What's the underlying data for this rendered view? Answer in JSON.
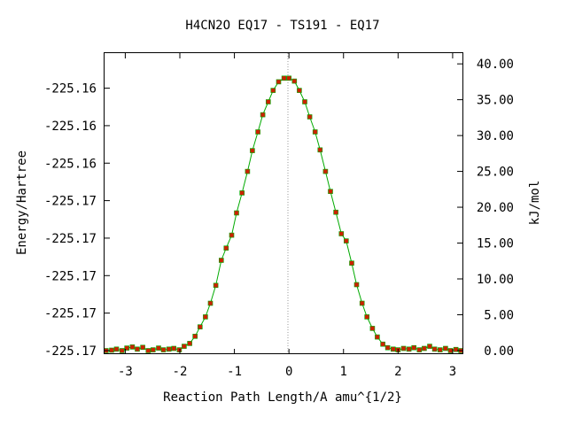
{
  "chart_data": {
    "type": "line",
    "title": "H4CN2O   EQ17 - TS191 - EQ17",
    "xlabel": "Reaction Path Length/A amu^{1/2}",
    "ylabel": "Energy/Hartree",
    "ylabel_right": "kJ/mol",
    "xlim": [
      -3.38,
      3.18
    ],
    "ylim_right": [
      -0.5,
      41.5
    ],
    "x_ticks": [
      {
        "value": -3,
        "label": "-3"
      },
      {
        "value": -2,
        "label": "-2"
      },
      {
        "value": -1,
        "label": "-1"
      },
      {
        "value": 0,
        "label": "0"
      },
      {
        "value": 1,
        "label": "1"
      },
      {
        "value": 2,
        "label": "2"
      },
      {
        "value": 3,
        "label": "3"
      }
    ],
    "y_left_ticks": [
      {
        "kj": 0,
        "label": "-225.17"
      },
      {
        "kj": 5.23,
        "label": "-225.17"
      },
      {
        "kj": 10.46,
        "label": "-225.17"
      },
      {
        "kj": 15.69,
        "label": "-225.17"
      },
      {
        "kj": 20.92,
        "label": "-225.17"
      },
      {
        "kj": 26.15,
        "label": "-225.16"
      },
      {
        "kj": 31.38,
        "label": "-225.16"
      },
      {
        "kj": 36.61,
        "label": "-225.16"
      }
    ],
    "y_right_ticks": [
      {
        "value": 0,
        "label": "0.00"
      },
      {
        "value": 5,
        "label": "5.00"
      },
      {
        "value": 10,
        "label": "10.00"
      },
      {
        "value": 15,
        "label": "15.00"
      },
      {
        "value": 20,
        "label": "20.00"
      },
      {
        "value": 25,
        "label": "25.00"
      },
      {
        "value": 30,
        "label": "30.00"
      },
      {
        "value": 35,
        "label": "35.00"
      },
      {
        "value": 40,
        "label": "40.00"
      }
    ],
    "series": [
      {
        "line_color": "#00aa00",
        "marker_color": "#cc2200",
        "points": [
          [
            -3.35,
            0.0
          ],
          [
            -3.25,
            0.05
          ],
          [
            -3.16,
            0.2
          ],
          [
            -3.06,
            0.0
          ],
          [
            -2.97,
            0.35
          ],
          [
            -2.87,
            0.5
          ],
          [
            -2.78,
            0.2
          ],
          [
            -2.68,
            0.45
          ],
          [
            -2.58,
            0.0
          ],
          [
            -2.49,
            0.1
          ],
          [
            -2.39,
            0.35
          ],
          [
            -2.3,
            0.1
          ],
          [
            -2.2,
            0.2
          ],
          [
            -2.11,
            0.3
          ],
          [
            -2.01,
            0.1
          ],
          [
            -1.92,
            0.6
          ],
          [
            -1.82,
            1.0
          ],
          [
            -1.72,
            2.0
          ],
          [
            -1.63,
            3.3
          ],
          [
            -1.53,
            4.7
          ],
          [
            -1.44,
            6.6
          ],
          [
            -1.34,
            9.1
          ],
          [
            -1.24,
            12.6
          ],
          [
            -1.15,
            14.3
          ],
          [
            -1.05,
            16.1
          ],
          [
            -0.96,
            19.2
          ],
          [
            -0.86,
            22.0
          ],
          [
            -0.76,
            25.0
          ],
          [
            -0.67,
            27.9
          ],
          [
            -0.57,
            30.5
          ],
          [
            -0.48,
            32.9
          ],
          [
            -0.38,
            34.7
          ],
          [
            -0.29,
            36.3
          ],
          [
            -0.19,
            37.5
          ],
          [
            -0.09,
            38.0
          ],
          [
            0.0,
            38.0
          ],
          [
            0.1,
            37.6
          ],
          [
            0.19,
            36.3
          ],
          [
            0.29,
            34.7
          ],
          [
            0.38,
            32.6
          ],
          [
            0.48,
            30.5
          ],
          [
            0.57,
            28.0
          ],
          [
            0.67,
            25.0
          ],
          [
            0.76,
            22.2
          ],
          [
            0.86,
            19.3
          ],
          [
            0.96,
            16.3
          ],
          [
            1.05,
            15.3
          ],
          [
            1.15,
            12.2
          ],
          [
            1.24,
            9.2
          ],
          [
            1.34,
            6.6
          ],
          [
            1.43,
            4.7
          ],
          [
            1.53,
            3.1
          ],
          [
            1.62,
            1.9
          ],
          [
            1.72,
            0.9
          ],
          [
            1.81,
            0.4
          ],
          [
            1.91,
            0.2
          ],
          [
            2.0,
            0.1
          ],
          [
            2.1,
            0.3
          ],
          [
            2.2,
            0.2
          ],
          [
            2.29,
            0.4
          ],
          [
            2.39,
            0.1
          ],
          [
            2.48,
            0.3
          ],
          [
            2.58,
            0.6
          ],
          [
            2.67,
            0.2
          ],
          [
            2.77,
            0.1
          ],
          [
            2.87,
            0.3
          ],
          [
            2.96,
            0.0
          ],
          [
            3.06,
            0.15
          ],
          [
            3.15,
            0.0
          ]
        ]
      }
    ]
  }
}
